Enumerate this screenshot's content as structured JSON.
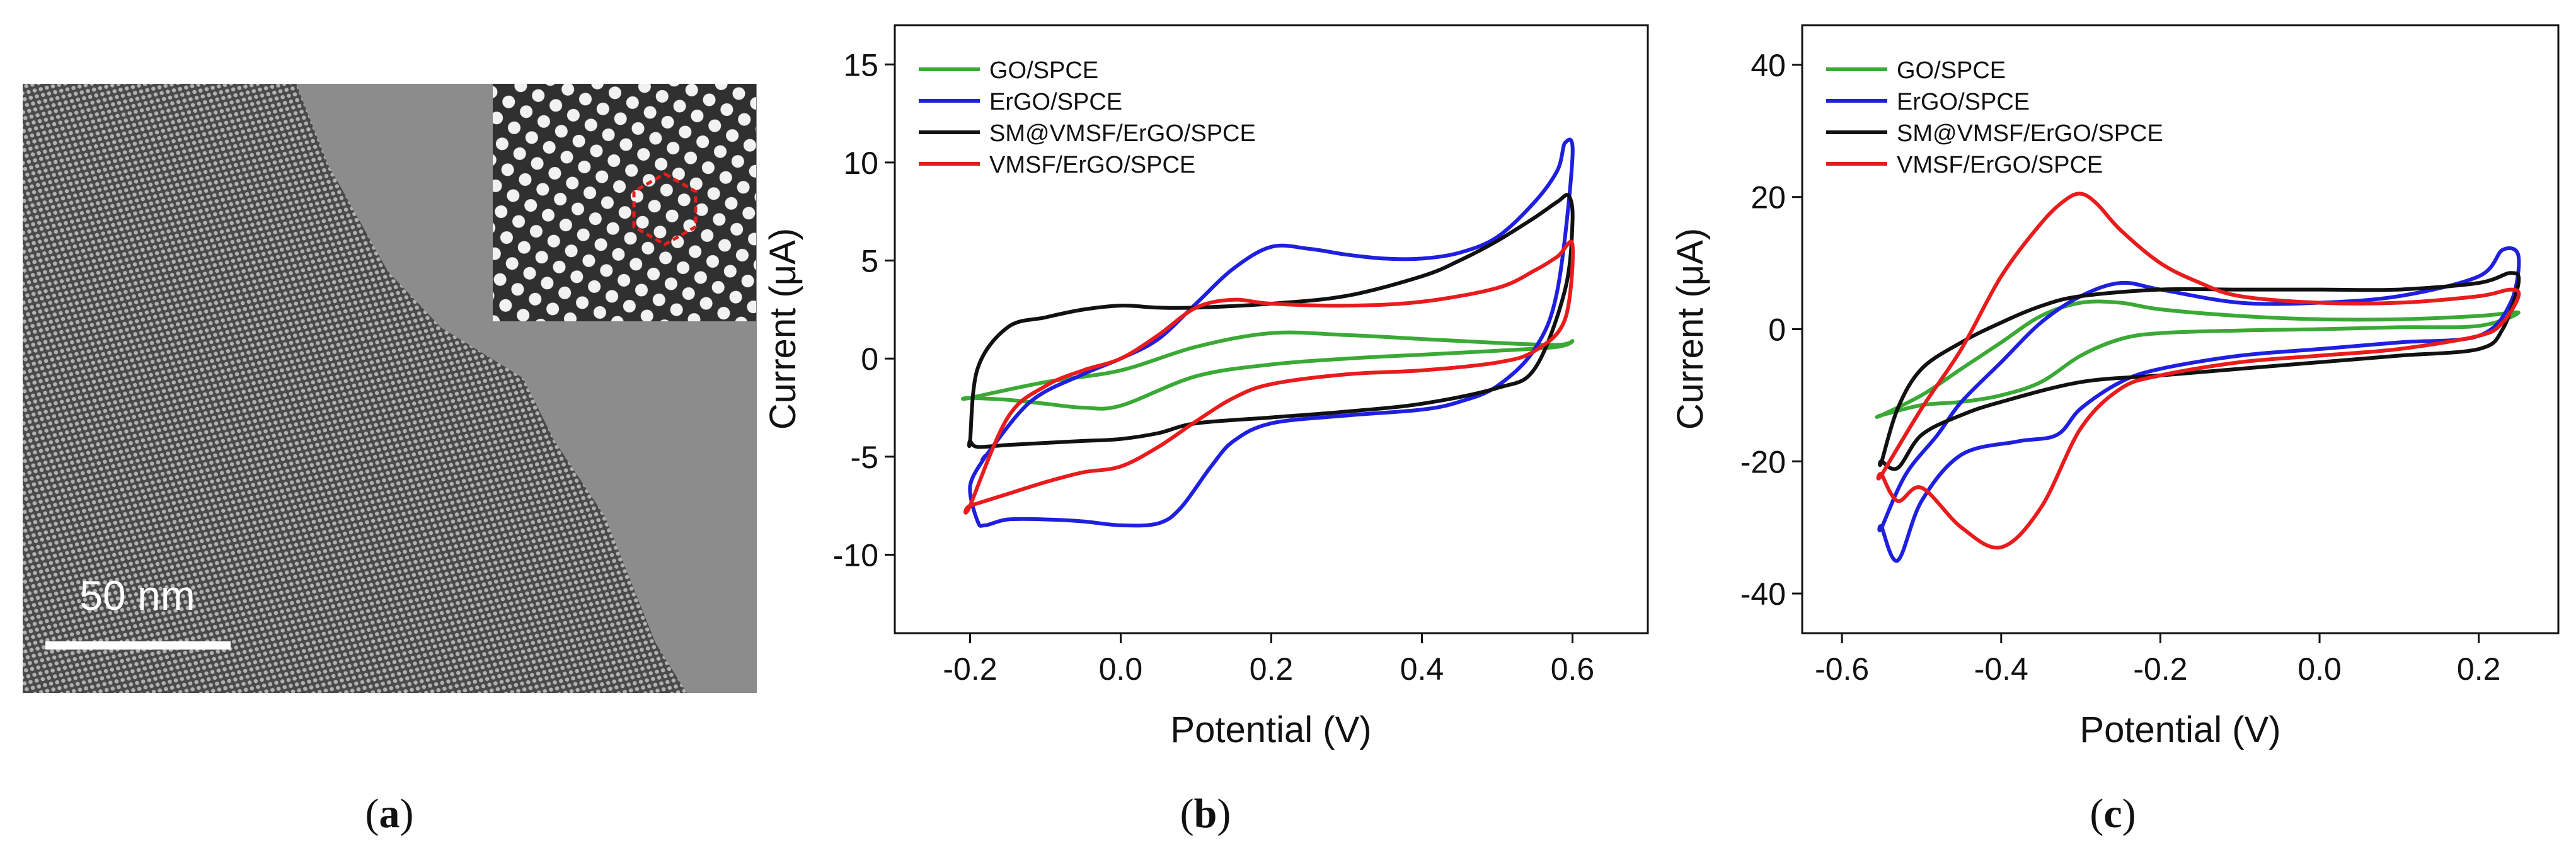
{
  "figure": {
    "panel_labels": [
      "(a)",
      "(b)",
      "(c)"
    ],
    "bold_letters": [
      "a",
      "b",
      "c"
    ],
    "panel_a": {
      "scale_bar_label": "50 nm",
      "description_icon": "tem-micrograph-icon"
    }
  },
  "colors": {
    "GO/SPCE": "#3aa935",
    "ErGO/SPCE": "#1f1fe0",
    "SM@VMSF/ErGO/SPCE": "#111111",
    "VMSF/ErGO/SPCE": "#e81c1c"
  },
  "chart_data": [
    {
      "id": "b",
      "type": "line",
      "xlabel": "Potential (V)",
      "ylabel": "Current (μA)",
      "xlim": [
        -0.3,
        0.7
      ],
      "ylim": [
        -14,
        17
      ],
      "xticks": [
        -0.2,
        0.0,
        0.2,
        0.4,
        0.6
      ],
      "xtick_labels": [
        "-0.2",
        "0.0",
        "0.2",
        "0.4",
        "0.6"
      ],
      "yticks": [
        -10,
        -5,
        0,
        5,
        10,
        15
      ],
      "ytick_labels": [
        "-10",
        "-5",
        "0",
        "5",
        "10",
        "15"
      ],
      "legend": [
        "GO/SPCE",
        "ErGO/SPCE",
        "SM@VMSF/ErGO/SPCE",
        "VMSF/ErGO/SPCE"
      ],
      "legend_position": "top-left",
      "series": [
        {
          "name": "GO/SPCE",
          "x": [
            -0.2,
            -0.1,
            0.0,
            0.1,
            0.2,
            0.3,
            0.4,
            0.5,
            0.58,
            0.6,
            0.58,
            0.5,
            0.4,
            0.3,
            0.2,
            0.1,
            0.0,
            -0.05,
            -0.1,
            -0.15,
            -0.2
          ],
          "y": [
            -2.0,
            -1.2,
            -0.6,
            0.6,
            1.3,
            1.2,
            1.0,
            0.8,
            0.7,
            0.9,
            0.6,
            0.4,
            0.2,
            0.0,
            -0.3,
            -0.9,
            -2.4,
            -2.5,
            -2.3,
            -2.1,
            -2.0
          ]
        },
        {
          "name": "ErGO/SPCE",
          "x": [
            -0.18,
            -0.12,
            -0.05,
            0.0,
            0.05,
            0.1,
            0.15,
            0.2,
            0.25,
            0.3,
            0.35,
            0.4,
            0.45,
            0.5,
            0.55,
            0.58,
            0.59,
            0.6,
            0.58,
            0.55,
            0.5,
            0.45,
            0.4,
            0.3,
            0.2,
            0.15,
            0.12,
            0.08,
            0.05,
            0.0,
            -0.05,
            -0.1,
            -0.15,
            -0.18,
            -0.19,
            -0.2,
            -0.18
          ],
          "y": [
            -5.0,
            -2.2,
            -0.8,
            0.0,
            1.0,
            2.8,
            4.6,
            5.7,
            5.6,
            5.3,
            5.1,
            5.1,
            5.4,
            6.2,
            8.0,
            9.6,
            11.0,
            10.3,
            3.5,
            0.5,
            -1.4,
            -2.2,
            -2.6,
            -2.9,
            -3.3,
            -4.2,
            -5.5,
            -7.6,
            -8.4,
            -8.5,
            -8.3,
            -8.2,
            -8.2,
            -8.5,
            -8.3,
            -6.5,
            -5.0
          ]
        },
        {
          "name": "SM@VMSF/ErGO/SPCE",
          "x": [
            -0.2,
            -0.19,
            -0.15,
            -0.1,
            -0.05,
            0.0,
            0.05,
            0.1,
            0.2,
            0.3,
            0.4,
            0.45,
            0.5,
            0.55,
            0.58,
            0.595,
            0.6,
            0.59,
            0.55,
            0.5,
            0.4,
            0.3,
            0.2,
            0.1,
            0.05,
            0.0,
            -0.05,
            -0.1,
            -0.15,
            -0.19,
            -0.2
          ],
          "y": [
            -4.2,
            -0.5,
            1.6,
            2.1,
            2.5,
            2.7,
            2.6,
            2.6,
            2.8,
            3.2,
            4.2,
            5.0,
            6.0,
            7.2,
            8.0,
            8.3,
            7.0,
            3.5,
            -0.5,
            -1.5,
            -2.3,
            -2.7,
            -3.0,
            -3.3,
            -3.8,
            -4.1,
            -4.2,
            -4.3,
            -4.4,
            -4.5,
            -4.2
          ]
        },
        {
          "name": "VMSF/ErGO/SPCE",
          "x": [
            -0.2,
            -0.15,
            -0.1,
            -0.05,
            0.0,
            0.05,
            0.1,
            0.15,
            0.2,
            0.3,
            0.4,
            0.5,
            0.55,
            0.58,
            0.6,
            0.59,
            0.55,
            0.5,
            0.4,
            0.3,
            0.2,
            0.15,
            0.1,
            0.05,
            0.0,
            -0.05,
            -0.1,
            -0.15,
            -0.2
          ],
          "y": [
            -7.5,
            -3.0,
            -1.4,
            -0.6,
            0.0,
            1.2,
            2.6,
            3.0,
            2.8,
            2.7,
            2.9,
            3.6,
            4.5,
            5.2,
            5.8,
            2.0,
            0.4,
            -0.2,
            -0.6,
            -0.8,
            -1.3,
            -2.0,
            -3.2,
            -4.5,
            -5.5,
            -5.8,
            -6.3,
            -6.9,
            -7.5
          ]
        }
      ]
    },
    {
      "id": "c",
      "type": "line",
      "xlabel": "Potential (V)",
      "ylabel": "Current (μA)",
      "xlim": [
        -0.65,
        0.3
      ],
      "ylim": [
        -46,
        46
      ],
      "xticks": [
        -0.6,
        -0.4,
        -0.2,
        0.0,
        0.2
      ],
      "xtick_labels": [
        "-0.6",
        "-0.4",
        "-0.2",
        "0.0",
        "0.2"
      ],
      "yticks": [
        -40,
        -20,
        0,
        20,
        40
      ],
      "ytick_labels": [
        "-40",
        "-20",
        "0",
        "20",
        "40"
      ],
      "legend": [
        "GO/SPCE",
        "ErGO/SPCE",
        "SM@VMSF/ErGO/SPCE",
        "VMSF/ErGO/SPCE"
      ],
      "legend_position": "top-left",
      "series": [
        {
          "name": "GO/SPCE",
          "x": [
            -0.55,
            -0.5,
            -0.45,
            -0.4,
            -0.35,
            -0.3,
            -0.25,
            -0.2,
            -0.1,
            0.0,
            0.1,
            0.2,
            0.25,
            0.2,
            0.1,
            0.0,
            -0.1,
            -0.2,
            -0.25,
            -0.3,
            -0.35,
            -0.4,
            -0.45,
            -0.5,
            -0.55
          ],
          "y": [
            -13,
            -10,
            -6,
            -2,
            2,
            4,
            4,
            3,
            2,
            1.5,
            1.5,
            2,
            2.5,
            0.5,
            0.3,
            0,
            -0.2,
            -0.6,
            -1.5,
            -4,
            -8,
            -10,
            -11,
            -11.5,
            -13
          ]
        },
        {
          "name": "ErGO/SPCE",
          "x": [
            -0.55,
            -0.52,
            -0.48,
            -0.45,
            -0.4,
            -0.35,
            -0.3,
            -0.25,
            -0.2,
            -0.1,
            0.0,
            0.1,
            0.2,
            0.23,
            0.25,
            0.24,
            0.2,
            0.1,
            0.0,
            -0.1,
            -0.2,
            -0.25,
            -0.3,
            -0.33,
            -0.38,
            -0.45,
            -0.5,
            -0.53,
            -0.55
          ],
          "y": [
            -30,
            -22,
            -16,
            -11,
            -5,
            1,
            5,
            7,
            6,
            4,
            4,
            5,
            8,
            12,
            11,
            4,
            -1,
            -2,
            -3,
            -4,
            -6,
            -8,
            -12,
            -16,
            -17,
            -19,
            -26,
            -35,
            -30
          ]
        },
        {
          "name": "SM@VMSF/ErGO/SPCE",
          "x": [
            -0.55,
            -0.53,
            -0.5,
            -0.45,
            -0.4,
            -0.35,
            -0.3,
            -0.2,
            -0.1,
            0.0,
            0.1,
            0.2,
            0.24,
            0.25,
            0.23,
            0.2,
            0.1,
            0.0,
            -0.1,
            -0.2,
            -0.3,
            -0.4,
            -0.45,
            -0.5,
            -0.53,
            -0.55
          ],
          "y": [
            -20,
            -12,
            -6,
            -2,
            1,
            3.5,
            5,
            6,
            6,
            6,
            6,
            7,
            8.5,
            7,
            0,
            -3,
            -4,
            -5,
            -6,
            -7,
            -8,
            -11,
            -13,
            -16,
            -21,
            -20
          ]
        },
        {
          "name": "VMSF/ErGO/SPCE",
          "x": [
            -0.55,
            -0.5,
            -0.45,
            -0.4,
            -0.35,
            -0.32,
            -0.3,
            -0.28,
            -0.25,
            -0.2,
            -0.15,
            -0.1,
            0.0,
            0.1,
            0.2,
            0.24,
            0.25,
            0.23,
            0.2,
            0.1,
            0.0,
            -0.1,
            -0.2,
            -0.25,
            -0.3,
            -0.35,
            -0.4,
            -0.45,
            -0.5,
            -0.53,
            -0.55
          ],
          "y": [
            -22,
            -12,
            -3,
            8,
            16,
            19.5,
            20.5,
            19,
            15,
            10,
            7,
            5,
            4,
            4,
            5,
            6,
            5,
            1,
            -1,
            -3,
            -4,
            -5,
            -7,
            -9,
            -15,
            -27,
            -33,
            -30,
            -24,
            -26,
            -22
          ]
        }
      ]
    }
  ]
}
